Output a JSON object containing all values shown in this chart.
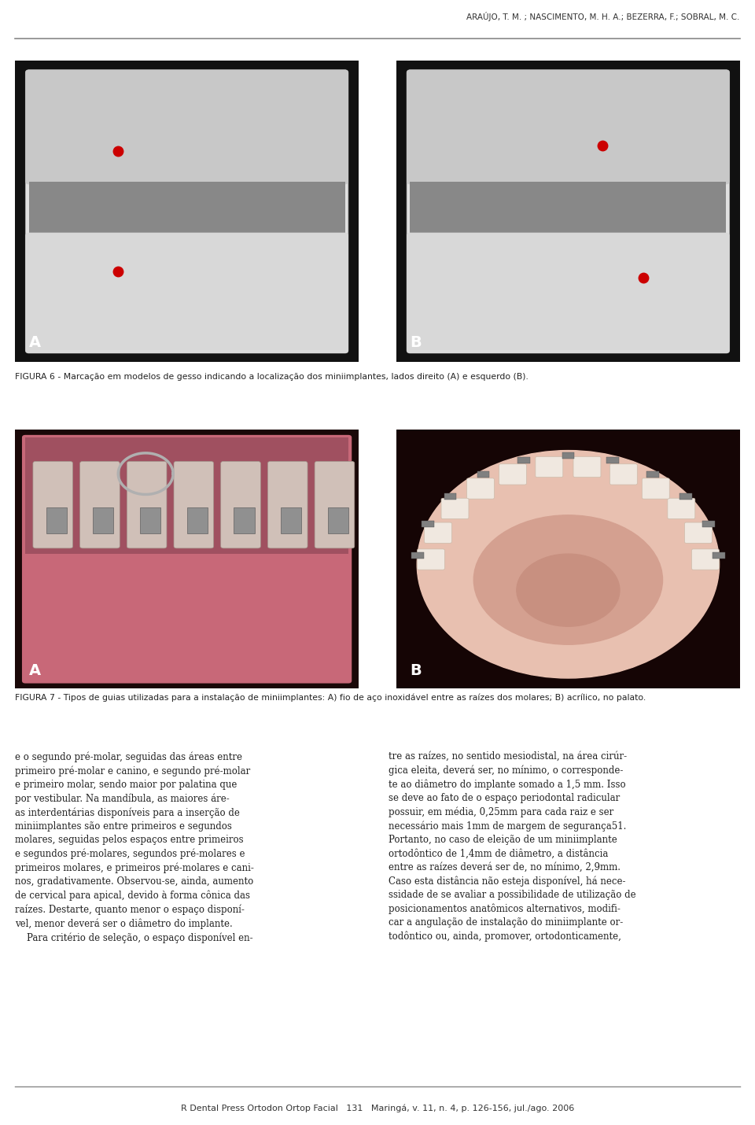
{
  "background_color": "#ffffff",
  "header_text": "ARAÚJO, T. M. ; NASCIMENTO, M. H. A.; BEZERRA, F.; SOBRAL, M. C.",
  "footer_text": "R Dental Press Ortodon Ortop Facial   131   Maringá, v. 11, n. 4, p. 126-156, jul./ago. 2006",
  "fig6_caption": "FIGURA 6 - Marcação em modelos de gesso indicando a localização dos miniimplantes, lados direito (A) e esquerdo (B).",
  "fig7_caption": "FIGURA 7 - Tipos de guias utilizadas para a instalação de miniimplantes: A) fio de aço inoxidável entre as raízes dos molares; B) acrílico, no palato.",
  "body_text_left": "e o segundo pré-molar, seguidas das áreas entre\nprimeiro pré-molar e canino, e segundo pré-molar\ne primeiro molar, sendo maior por palatina que\npor vestibular. Na mandíbula, as maiores áre-\nas interdentárias disponíveis para a inserção de\nminiimplantes são entre primeiros e segundos\nmolares, seguidas pelos espaços entre primeiros\ne segundos pré-molares, segundos pré-molares e\nprimeiros molares, e primeiros pré-molares e cani-\nnos, gradativamente. Observou-se, ainda, aumento\nde cervical para apical, devido à forma cônica das\nraízes. Destarte, quanto menor o espaço disponí-\nvel, menor deverá ser o diâmetro do implante.\n    Para critério de seleção, o espaço disponível en-",
  "body_text_right": "tre as raízes, no sentido mesiodistal, na área cirúr-\ngica eleita, deverá ser, no mínimo, o corresponde-\nte ao diâmetro do implante somado a 1,5 mm. Isso\nse deve ao fato de o espaço periodontal radicular\npossuir, em média, 0,25mm para cada raiz e ser\nnecessário mais 1mm de margem de segurança51.\nPortanto, no caso de eleição de um miniimplante\nortodôntico de 1,4mm de diâmetro, a distância\nentre as raízes deverá ser de, no mínimo, 2,9mm.\nCaso esta distância não esteja disponível, há nece-\nssidade de se avaliar a possibilidade de utilização de\nposicionamentos anatômicos alternativos, modifi-\ncar a angulação de instalação do miniimplante or-\ntodôntico ou, ainda, promover, ortodonticamente,"
}
